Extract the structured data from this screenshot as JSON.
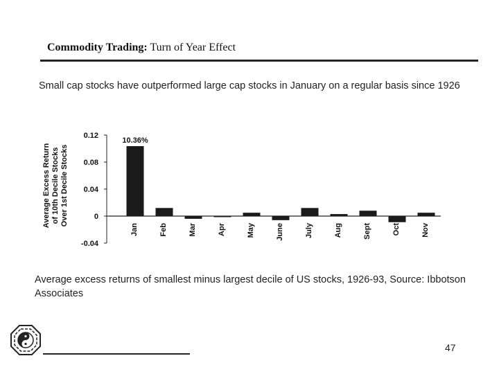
{
  "slide": {
    "title_bold": "Commodity Trading:",
    "title_rest": " Turn of Year Effect",
    "intro": "Small cap stocks have outperformed large cap stocks in January on a regular basis since 1926",
    "caption": "Average excess returns of smallest minus largest decile of US stocks, 1926-93, Source: Ibbotson Associates",
    "page_number": "47",
    "logo_icon": "bagua-octagon-logo-icon"
  },
  "chart_data": {
    "type": "bar",
    "ylabel_lines": [
      "Average Excess Return",
      "of 10th Decile Stocks",
      "Over 1st Decile Stocks"
    ],
    "categories": [
      "Jan",
      "Feb",
      "Mar",
      "Apr",
      "May",
      "June",
      "July",
      "Aug",
      "Sept",
      "Oct",
      "Nov"
    ],
    "values": [
      0.1036,
      0.012,
      -0.004,
      -0.001,
      0.005,
      -0.006,
      0.012,
      0.003,
      0.008,
      -0.009,
      0.005
    ],
    "ylim": [
      -0.04,
      0.12
    ],
    "yticks": [
      "0.12",
      "0.08",
      "0.04",
      "0",
      "-0.04"
    ],
    "ytick_values": [
      0.12,
      0.08,
      0.04,
      0,
      -0.04
    ],
    "data_label": "10.36%",
    "bar_color": "#1a1a1a",
    "grid": false
  }
}
